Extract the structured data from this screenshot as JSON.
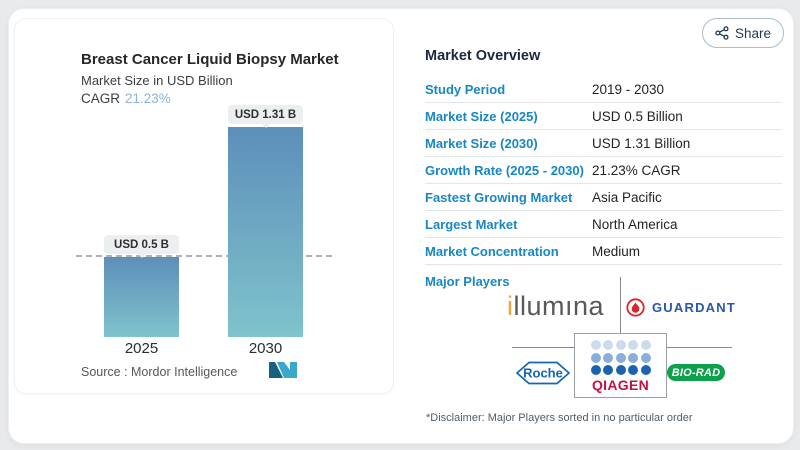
{
  "share_button": {
    "label": "Share",
    "icon": "share-nodes-icon"
  },
  "chart": {
    "title": "Breast Cancer Liquid Biopsy Market",
    "subtitle": "Market Size in USD Billion",
    "cagr_label": "CAGR",
    "cagr_value": "21.23%",
    "bars": [
      {
        "year": "2025",
        "value_label": "USD 0.5 B"
      },
      {
        "year": "2030",
        "value_label": "USD 1.31 B"
      }
    ],
    "source": "Source :  Mordor Intelligence",
    "logo": "mordor-intelligence-logo"
  },
  "chart_data": {
    "type": "bar",
    "categories": [
      "2025",
      "2030"
    ],
    "values": [
      0.5,
      1.31
    ],
    "series_name": "Market Size (USD Billion)",
    "title": "Breast Cancer Liquid Biopsy Market",
    "ylabel": "Market Size in USD Billion",
    "cagr_percent": 21.23,
    "data_labels": [
      "USD 0.5 B",
      "USD 1.31 B"
    ],
    "ylim": [
      0,
      1.4
    ],
    "grid": false,
    "legend": "none",
    "annotations": [
      "horizontal dashed reference line at the 2025 bar top (0.5)"
    ]
  },
  "overview": {
    "heading": "Market Overview",
    "rows": [
      {
        "label": "Study Period",
        "value": "2019 - 2030"
      },
      {
        "label": "Market Size (2025)",
        "value": "USD 0.5 Billion"
      },
      {
        "label": "Market Size (2030)",
        "value": "USD 1.31 Billion"
      },
      {
        "label": "Growth Rate (2025 - 2030)",
        "value": "21.23% CAGR"
      },
      {
        "label": "Fastest Growing Market",
        "value": "Asia Pacific"
      },
      {
        "label": "Largest Market",
        "value": "North America"
      },
      {
        "label": "Market Concentration",
        "value": "Medium"
      }
    ],
    "major_players_label": "Major Players",
    "players": {
      "illumina": {
        "name": "Illumina",
        "first": "i",
        "rest": "llumına"
      },
      "guardant": {
        "name": "Guardant Health",
        "text": "GUARDANT"
      },
      "roche": {
        "name": "Roche",
        "text": "Roche"
      },
      "qiagen": {
        "name": "QIAGEN",
        "text": "QIAGEN"
      },
      "biorad": {
        "name": "Bio-Rad",
        "text": "BIO-RAD"
      }
    },
    "disclaimer": "*Disclaimer: Major Players sorted in no particular order"
  },
  "colors": {
    "accent_blue": "#1787c5",
    "bar_gradient_top": "#5d8fba",
    "bar_gradient_bottom": "#7fc3cb",
    "cagr_value_blue": "#8cb2d8",
    "heading_navy": "#1b2940",
    "guardant_blue": "#2b57a5",
    "guardant_red": "#d5272e",
    "roche_blue": "#1566b1",
    "qiagen_red": "#c90f3f",
    "biorad_green": "#0fa04c",
    "illumina_gray": "#58595b",
    "illumina_orange": "#f2a33c"
  }
}
